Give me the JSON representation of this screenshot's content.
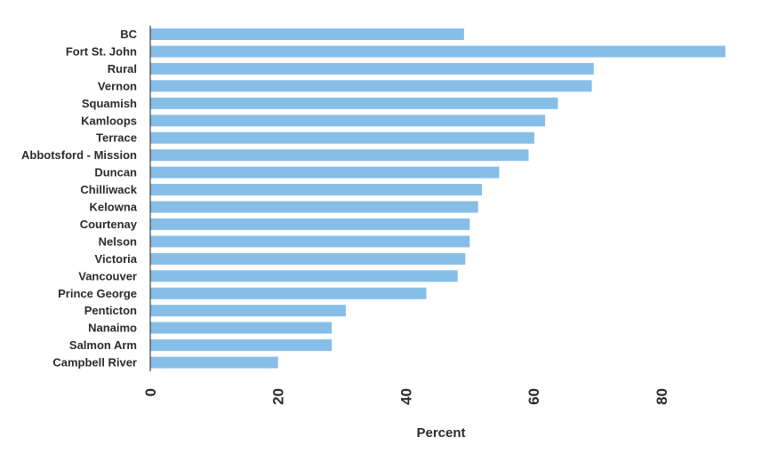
{
  "chart_data": {
    "type": "bar",
    "orientation": "horizontal",
    "categories": [
      "BC",
      "Fort St. John",
      "Rural",
      "Vernon",
      "Squamish",
      "Kamloops",
      "Terrace",
      "Abbotsford - Mission",
      "Duncan",
      "Chilliwack",
      "Kelowna",
      "Courtenay",
      "Nelson",
      "Victoria",
      "Vancouver",
      "Prince George",
      "Penticton",
      "Nanaimo",
      "Salmon Arm",
      "Campbell River"
    ],
    "values": [
      49.1,
      90.0,
      69.4,
      69.1,
      63.8,
      61.8,
      60.1,
      59.2,
      54.6,
      51.9,
      51.3,
      50.0,
      50.0,
      49.3,
      48.1,
      43.2,
      30.6,
      28.4,
      28.4,
      20.0
    ],
    "xlabel": "Percent",
    "ylabel": "",
    "xlim": [
      0,
      91
    ],
    "xticks": [
      0,
      20,
      40,
      60,
      80
    ],
    "grid": false,
    "legend": "none",
    "bar_color": "#87bee8",
    "axis_color": "#222222"
  }
}
